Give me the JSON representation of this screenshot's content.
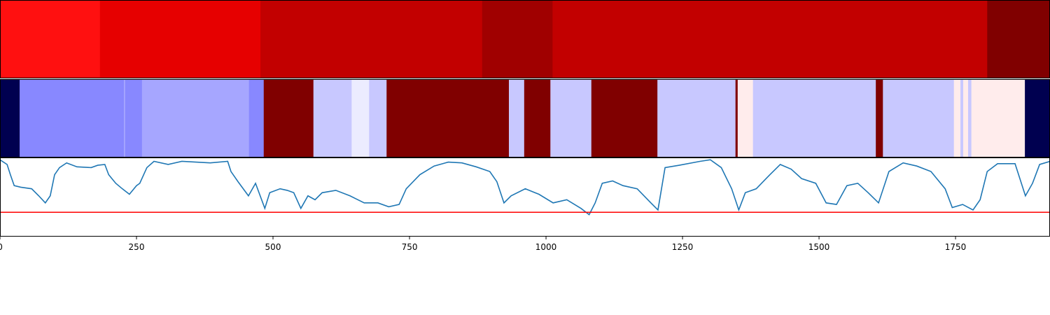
{
  "chart_data": [
    {
      "type": "strip",
      "xlim": [
        0,
        1923
      ],
      "edges": [
        0,
        183,
        477,
        883,
        1012,
        1808,
        1923
      ],
      "colors": [
        "#ff1010",
        "#e60000",
        "#c20000",
        "#a00000",
        "#c20000",
        "#800000"
      ]
    },
    {
      "type": "strip",
      "xlim": [
        0,
        1923
      ],
      "edges": [
        0,
        36,
        227,
        229,
        260,
        456,
        483,
        574,
        644,
        676,
        708,
        932,
        960,
        1008,
        1083,
        1204,
        1347,
        1351,
        1379,
        1604,
        1617,
        1747,
        1759,
        1764,
        1773,
        1779,
        1877,
        1923
      ],
      "colors": [
        "#000050",
        "#8888ff",
        "#aaaaff",
        "#8888ff",
        "#a6a6ff",
        "#8888ff",
        "#800000",
        "#c8c8ff",
        "#ececff",
        "#c8c8ff",
        "#800000",
        "#c8c8ff",
        "#800000",
        "#c8c8ff",
        "#800000",
        "#c8c8ff",
        "#800000",
        "#ffecec",
        "#c8c8ff",
        "#800000",
        "#c8c8ff",
        "#ffecec",
        "#c8c8ff",
        "#ffecec",
        "#c8c8ff",
        "#ffecec",
        "#000050"
      ]
    },
    {
      "type": "line",
      "xlim": [
        0,
        1923
      ],
      "ylim": [
        0,
        1
      ],
      "xticks": [
        0,
        250,
        500,
        750,
        1000,
        1250,
        1500,
        1750
      ],
      "hline": 0.31,
      "hline_color": "#ff0000",
      "series": [
        {
          "color": "#1f77b4",
          "x": [
            0,
            13,
            19,
            26,
            38,
            58,
            71,
            83,
            92,
            100,
            109,
            122,
            141,
            167,
            179,
            192,
            199,
            212,
            224,
            237,
            250,
            256,
            269,
            282,
            308,
            333,
            359,
            385,
            417,
            423,
            436,
            455,
            468,
            485,
            494,
            513,
            526,
            538,
            551,
            564,
            577,
            590,
            615,
            641,
            667,
            692,
            712,
            731,
            744,
            769,
            795,
            821,
            846,
            872,
            897,
            910,
            923,
            936,
            962,
            987,
            1013,
            1038,
            1064,
            1079,
            1090,
            1103,
            1122,
            1141,
            1167,
            1192,
            1205,
            1218,
            1244,
            1282,
            1301,
            1321,
            1340,
            1353,
            1365,
            1385,
            1410,
            1429,
            1449,
            1468,
            1494,
            1513,
            1532,
            1551,
            1571,
            1590,
            1609,
            1628,
            1654,
            1679,
            1705,
            1731,
            1744,
            1763,
            1782,
            1795,
            1808,
            1827,
            1859,
            1878,
            1891,
            1904,
            1923
          ],
          "values": [
            0.98,
            0.92,
            0.79,
            0.65,
            0.63,
            0.61,
            0.52,
            0.43,
            0.52,
            0.79,
            0.88,
            0.94,
            0.89,
            0.88,
            0.91,
            0.92,
            0.79,
            0.68,
            0.61,
            0.54,
            0.65,
            0.68,
            0.88,
            0.96,
            0.92,
            0.96,
            0.95,
            0.94,
            0.96,
            0.83,
            0.7,
            0.52,
            0.68,
            0.36,
            0.56,
            0.61,
            0.59,
            0.56,
            0.36,
            0.52,
            0.47,
            0.56,
            0.59,
            0.52,
            0.43,
            0.43,
            0.38,
            0.41,
            0.61,
            0.79,
            0.9,
            0.95,
            0.94,
            0.89,
            0.83,
            0.7,
            0.43,
            0.52,
            0.61,
            0.54,
            0.43,
            0.47,
            0.36,
            0.28,
            0.43,
            0.68,
            0.71,
            0.65,
            0.61,
            0.43,
            0.34,
            0.88,
            0.91,
            0.96,
            0.98,
            0.88,
            0.61,
            0.34,
            0.56,
            0.61,
            0.79,
            0.92,
            0.86,
            0.74,
            0.68,
            0.43,
            0.41,
            0.65,
            0.68,
            0.56,
            0.43,
            0.83,
            0.94,
            0.9,
            0.83,
            0.61,
            0.37,
            0.41,
            0.34,
            0.47,
            0.83,
            0.93,
            0.93,
            0.52,
            0.68,
            0.92,
            0.96
          ]
        }
      ]
    }
  ]
}
